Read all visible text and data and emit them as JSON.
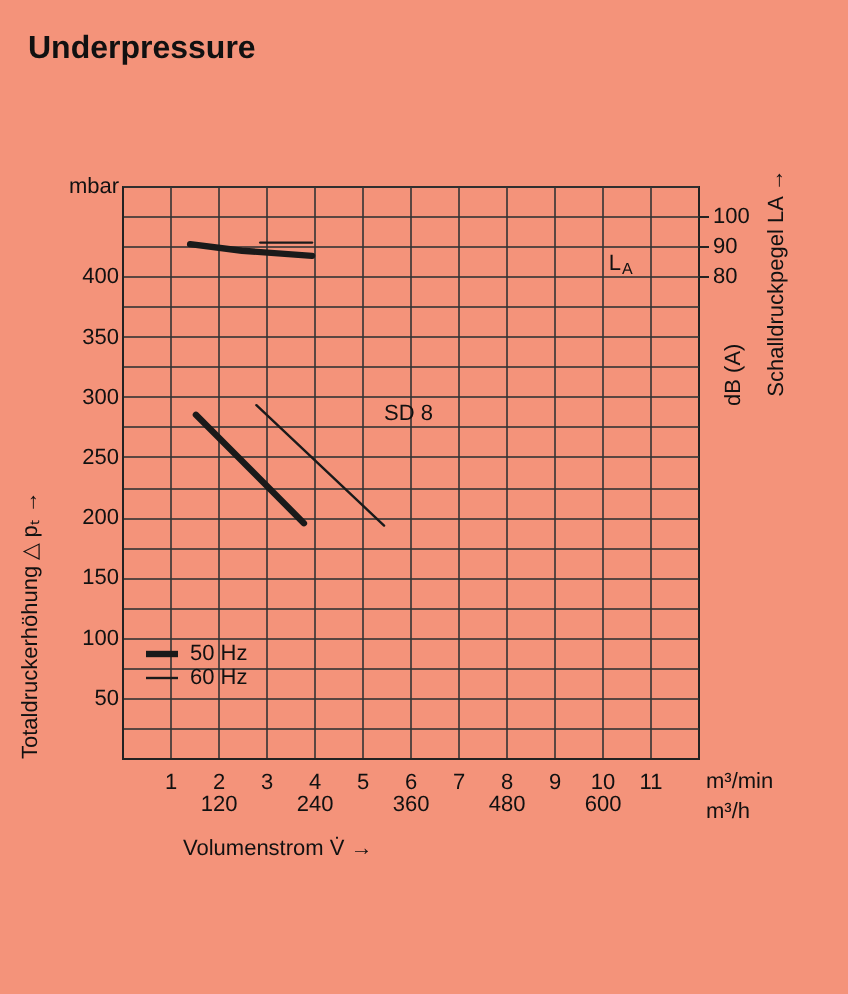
{
  "chart_data": {
    "type": "line",
    "title": "Underpressure",
    "xlabel": "Volumenstrom V̇ →",
    "ylabel": "Totaldruckerhöhung △ pₜ →",
    "y2label": "Schalldruckpegel LA →",
    "xlim": [
      0,
      12
    ],
    "ylim": [
      0,
      475
    ],
    "y2lim": [
      -80,
      110
    ],
    "x2lim": [
      0,
      720
    ],
    "xticks": [
      1,
      2,
      3,
      4,
      5,
      6,
      7,
      8,
      9,
      10,
      11
    ],
    "x2ticks": [
      120,
      240,
      360,
      480,
      600
    ],
    "yticks": [
      {
        "value": 25,
        "label": null
      },
      50,
      {
        "value": 75,
        "label": null
      },
      100,
      {
        "value": 125,
        "label": null
      },
      150,
      {
        "value": 175,
        "label": null
      },
      200,
      {
        "value": 225,
        "label": null
      },
      250,
      {
        "value": 275,
        "label": null
      },
      300,
      {
        "value": 325,
        "label": null
      },
      350,
      {
        "value": 375,
        "label": null
      },
      400,
      {
        "value": 425,
        "label": null
      },
      {
        "value": 450,
        "label": null
      },
      {
        "value": 475,
        "label": "mbar"
      }
    ],
    "y2ticks": [
      80,
      90,
      100
    ],
    "series": [
      {
        "name": "50 Hz",
        "color": "#1a1a1a",
        "x": [
          1.54,
          3.79
        ],
        "values": [
          285,
          195
        ]
      },
      {
        "name": "60 Hz",
        "color": "#1a1a1a",
        "x": [
          2.8,
          5.46
        ],
        "values": [
          293,
          193
        ]
      },
      {
        "color": "#1a1a1a",
        "axis": "y2",
        "x": [
          1.42,
          2.5,
          3.96
        ],
        "values": [
          90.7,
          88.5,
          86.8
        ]
      },
      {
        "color": "#1a1a1a",
        "axis": "y2",
        "x": [
          2.88,
          3.96
        ],
        "values": [
          91.2,
          91.2
        ]
      }
    ],
    "annotations": [
      "SD 8",
      "L$_{A}$",
      "dB (A)",
      "m³/min",
      "m³/h"
    ],
    "grid": true,
    "legend": "bottom left",
    "line_style": "solid"
  }
}
